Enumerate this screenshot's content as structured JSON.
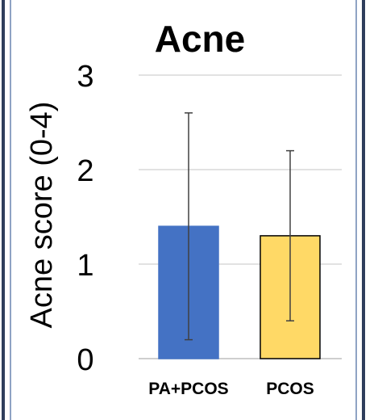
{
  "chart_data": {
    "type": "bar",
    "title": "Acne",
    "xlabel": "",
    "ylabel": "Acne score (0-4)",
    "ylim": [
      0,
      3
    ],
    "yticks": [
      "0",
      "1",
      "2",
      "3"
    ],
    "categories": [
      "PA+PCOS",
      "PCOS"
    ],
    "values": [
      1.4,
      1.3
    ],
    "error_low": [
      0.2,
      0.4
    ],
    "error_high": [
      2.6,
      2.2
    ],
    "colors": [
      "#4472C4",
      "#FFD966"
    ],
    "bar_outline": [
      "#4472C4",
      "#000000"
    ],
    "grid": true,
    "legend": "none"
  },
  "colors": {
    "frame_border": "#2F3E5C",
    "frame_inner": "#8FA3C4",
    "grid": "#D9D9D9",
    "axis": "#BFBFBF",
    "error_bar": "#404040"
  }
}
